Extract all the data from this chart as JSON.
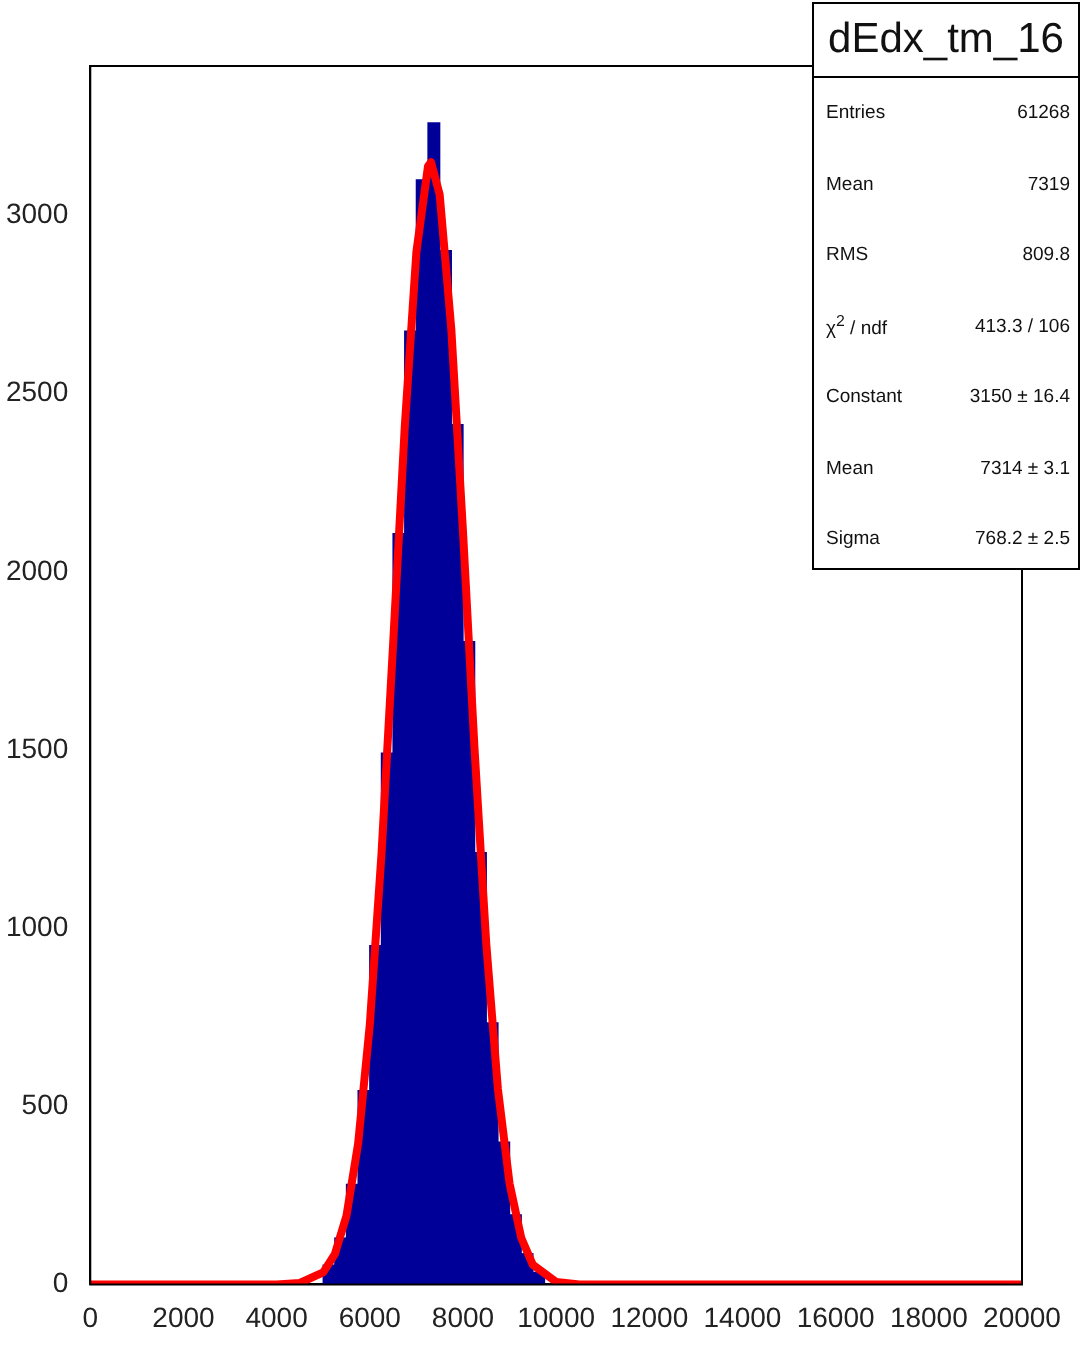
{
  "chart_data": {
    "type": "histogram",
    "title": "dEdx_tm_16",
    "annotations": [
      "Entries",
      "61268",
      "Mean",
      "7319",
      "RMS",
      "809.8",
      "χ$^{2}$ / ndf",
      "413.3 / 106",
      "Constant",
      "3150 ± 16.4",
      "Mean",
      "7314 ± 3.1",
      "Sigma",
      "768.2 ± 2.5"
    ],
    "color": "#000099",
    "bins": [
      0,
      250,
      500,
      750,
      1000,
      1250,
      1500,
      1750,
      2000,
      2250,
      2500,
      2750,
      3000,
      3250,
      3500,
      3750,
      4000,
      4250,
      4500,
      4750,
      5000,
      5250,
      5500,
      5750,
      6000,
      6250,
      6500,
      6750,
      7000,
      7250,
      7500,
      7750,
      8000,
      8250,
      8500,
      8750,
      9000,
      9250,
      9500,
      9750,
      10000,
      10250,
      10500,
      10750,
      11000,
      11250,
      11500,
      11750,
      12000,
      12250,
      12500,
      12750,
      13000,
      13250,
      13500,
      13750,
      14000,
      14250,
      14500,
      14750,
      15000,
      15250,
      15500,
      15750,
      16000,
      16250,
      16500,
      16750,
      17000,
      17250,
      17500,
      17750,
      18000,
      18250,
      18500,
      18750,
      19000,
      19250,
      19500,
      19750,
      20000
    ],
    "values": [
      0,
      0,
      0,
      0,
      0,
      0,
      0,
      0,
      0,
      0,
      0,
      0,
      0,
      0,
      0,
      0,
      0,
      0,
      null,
      null,
      54,
      130,
      281,
      544,
      951,
      1491,
      2107,
      2676,
      3100,
      3260,
      2902,
      2413,
      1804,
      1212,
      734,
      399,
      195,
      86,
      34,
      null,
      null,
      0,
      0,
      0,
      0,
      0,
      0,
      0,
      0,
      0,
      0,
      0,
      0,
      0,
      0,
      0,
      0,
      0,
      0,
      0,
      0,
      0,
      0,
      0,
      0,
      0,
      0,
      0,
      0,
      0,
      0,
      0,
      0,
      0,
      0,
      0,
      0,
      0,
      0,
      0
    ],
    "series": [
      {
        "type": "line",
        "color": "#ff0000",
        "x": [
          0,
          4000,
          4500,
          5000,
          5250,
          5500,
          5750,
          6000,
          6250,
          6500,
          6750,
          7000,
          7250,
          7314,
          7500,
          7750,
          8000,
          8250,
          8500,
          8750,
          9000,
          9250,
          9500,
          10000,
          10500,
          20000
        ],
        "values": [
          0,
          0,
          4,
          34,
          85,
          193,
          396,
          729,
          1206,
          1796,
          2406,
          2898,
          3139,
          3150,
          3059,
          2681,
          2114,
          1499,
          956,
          548,
          283,
          131,
          55,
          7,
          0,
          0
        ]
      }
    ],
    "xlim": [
      0,
      20000
    ],
    "xticks": [
      0,
      2000,
      4000,
      6000,
      8000,
      10000,
      12000,
      14000,
      16000,
      18000,
      20000
    ],
    "ylim": [
      0,
      3420
    ],
    "yticks": [
      0,
      500,
      1000,
      1500,
      2000,
      2500,
      3000
    ],
    "grid": false,
    "legend": false
  }
}
